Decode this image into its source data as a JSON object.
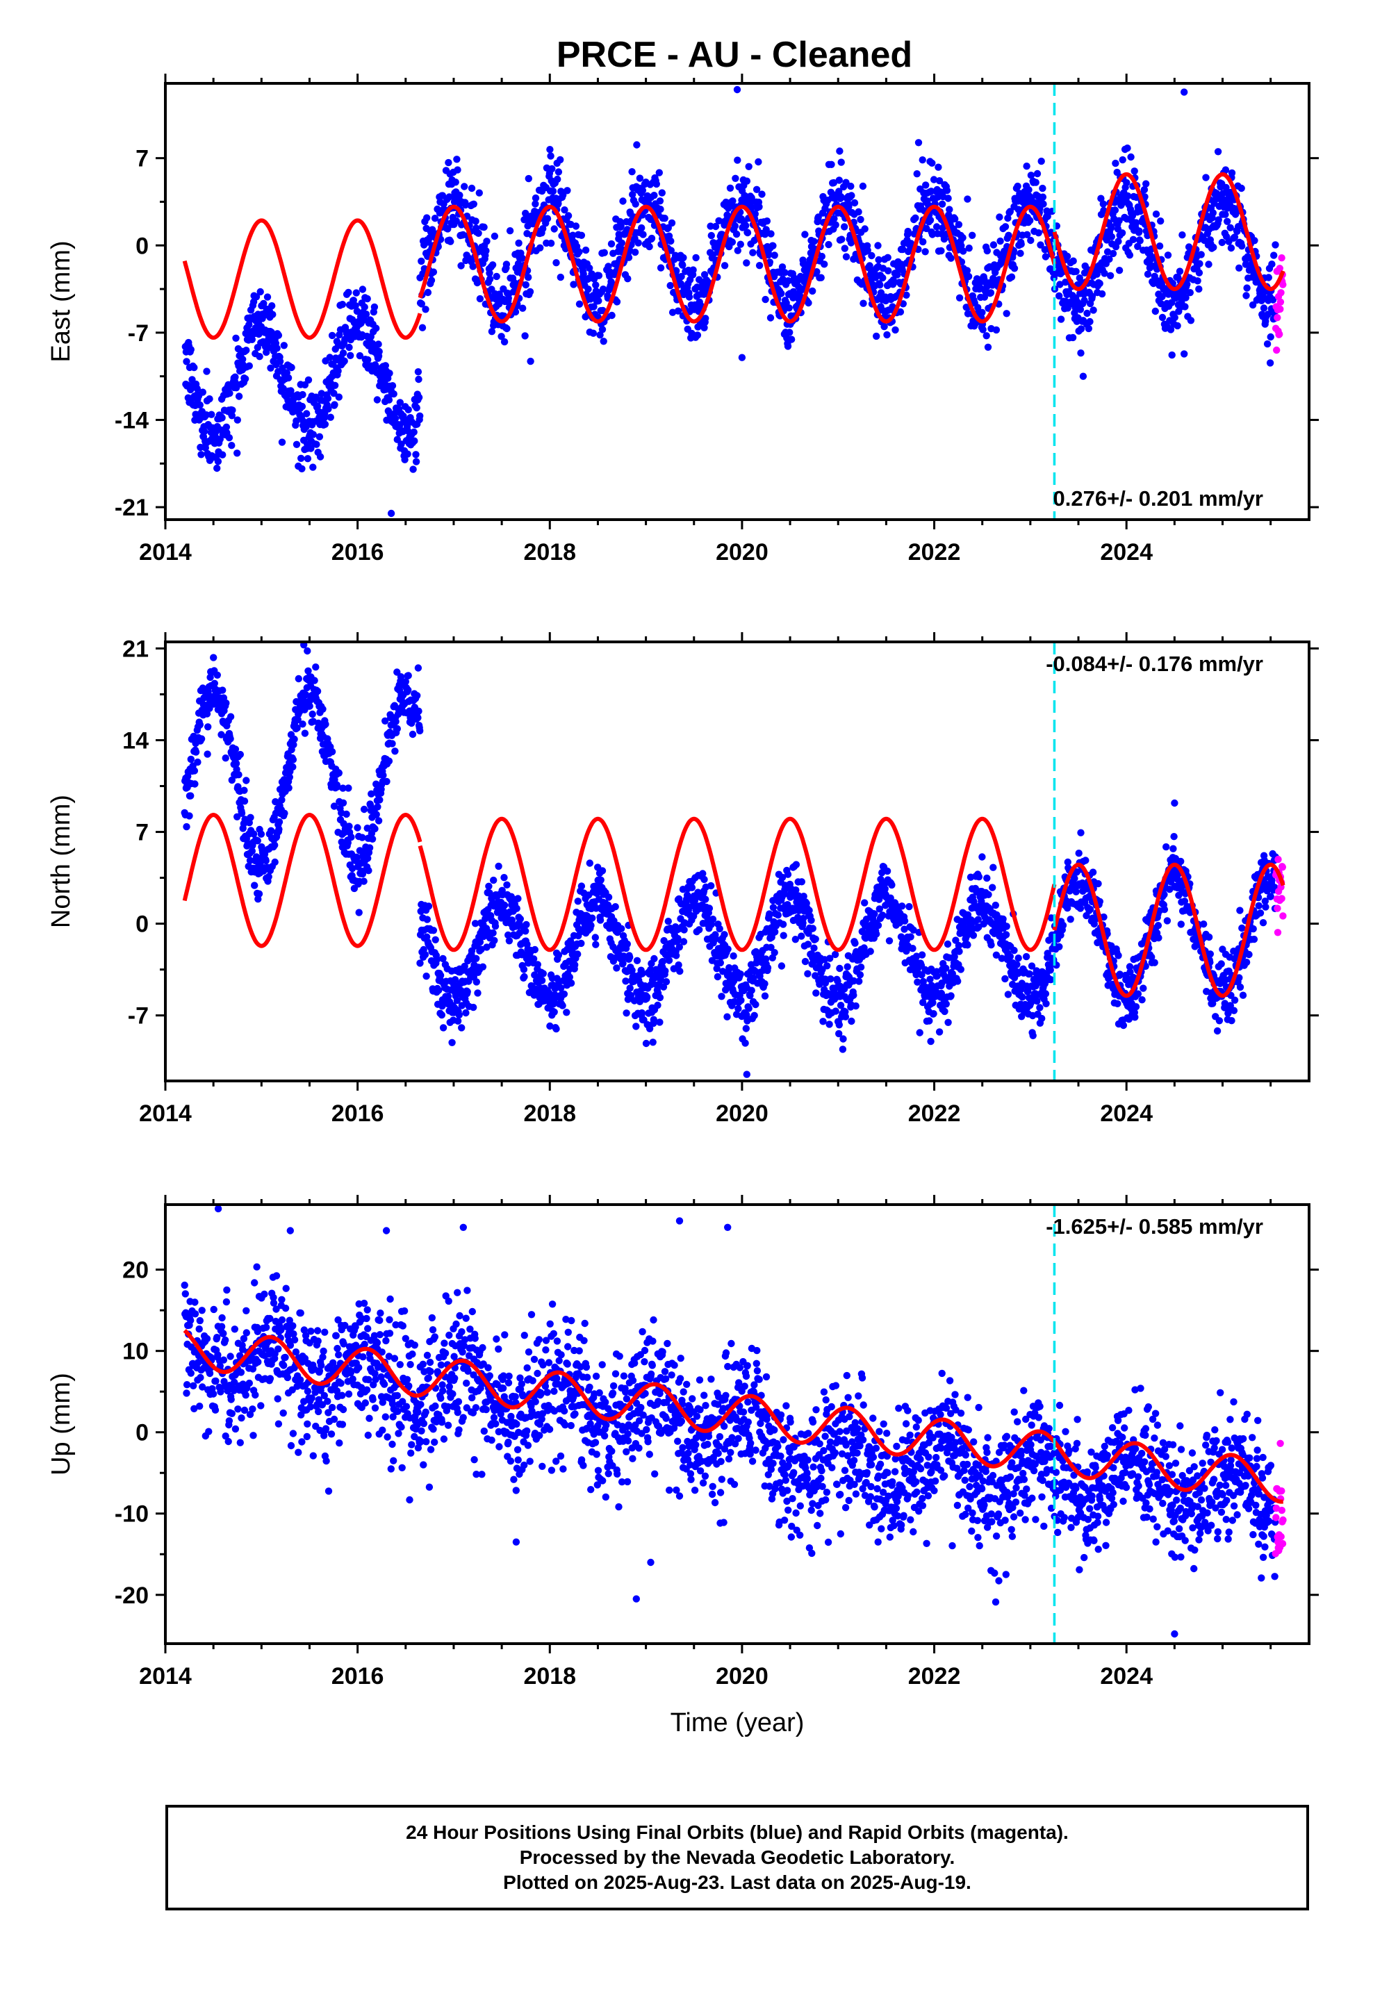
{
  "title": "PRCE  - AU - Cleaned",
  "colors": {
    "data": "#0000ff",
    "rapid": "#ff00ff",
    "model": "#ff0000",
    "event": "#00e5ee",
    "frame": "#000000"
  },
  "footer": {
    "line1": "24 Hour Positions Using Final Orbits (blue) and Rapid Orbits (magenta).",
    "line2": "Processed by the Nevada Geodetic Laboratory.",
    "line3": "Plotted on 2025-Aug-23. Last data on 2025-Aug-19."
  },
  "chart_data": [
    {
      "type": "scatter",
      "ylabel": "East (mm)",
      "xlabel": "",
      "xlim": [
        2014,
        2025.9
      ],
      "ylim": [
        -22,
        13
      ],
      "xticks": [
        2014,
        2016,
        2018,
        2020,
        2022,
        2024
      ],
      "yticks": [
        -21,
        -14,
        -7,
        0,
        7
      ],
      "rate_label": "0.276+/- 0.201 mm/yr",
      "rate_position": "bottom-right",
      "event_line_x": 2023.25,
      "data_start": 2014.2,
      "data_end": 2025.63,
      "rapid_start": 2025.55,
      "segments": [
        {
          "x0": 2014.2,
          "x1": 2016.65,
          "mean": -10.5,
          "amp": 4.5,
          "phase": 2015.0,
          "noise": 1.5
        },
        {
          "x0": 2016.65,
          "x1": 2025.63,
          "mean": -0.5,
          "amp": 4.0,
          "phase": 2018.0,
          "noise": 1.7
        }
      ],
      "model": [
        {
          "x0": 2014.2,
          "x1": 2016.65,
          "mean": -2.7,
          "amp": 4.7,
          "phase": 2015.0
        },
        {
          "x0": 2016.65,
          "x1": 2023.25,
          "mean": -1.5,
          "amp": 4.6,
          "phase": 2018.0
        },
        {
          "x0": 2023.25,
          "x1": 2025.63,
          "mean": 1.1,
          "amp": 4.6,
          "phase": 2024.0
        }
      ],
      "outliers": [
        [
          2016.35,
          -21.5
        ],
        [
          2019.95,
          12.5
        ],
        [
          2023.55,
          -10.5
        ],
        [
          2024.6,
          12.3
        ],
        [
          2017.8,
          -9.3
        ],
        [
          2020.0,
          -9.0
        ],
        [
          2024.6,
          -8.7
        ]
      ]
    },
    {
      "type": "scatter",
      "ylabel": "North (mm)",
      "xlabel": "",
      "xlim": [
        2014,
        2025.9
      ],
      "ylim": [
        -12,
        21.5
      ],
      "xticks": [
        2014,
        2016,
        2018,
        2020,
        2022,
        2024
      ],
      "yticks": [
        -7,
        0,
        7,
        14,
        21
      ],
      "rate_label": "-0.084+/- 0.176 mm/yr",
      "rate_position": "top-right",
      "event_line_x": 2023.25,
      "data_start": 2014.2,
      "data_end": 2025.63,
      "rapid_start": 2025.55,
      "segments": [
        {
          "x0": 2014.2,
          "x1": 2016.65,
          "mean": 11.0,
          "amp": 6.5,
          "phase": 2014.5,
          "noise": 1.3
        },
        {
          "x0": 2016.65,
          "x1": 2023.25,
          "mean": -2.0,
          "amp": 3.8,
          "phase": 2017.5,
          "noise": 1.3
        },
        {
          "x0": 2023.25,
          "x1": 2025.63,
          "mean": -1.0,
          "amp": 4.5,
          "phase": 2023.5,
          "noise": 1.2
        }
      ],
      "model": [
        {
          "x0": 2014.2,
          "x1": 2016.65,
          "mean": 3.3,
          "amp": 5.0,
          "phase": 2014.5
        },
        {
          "x0": 2016.65,
          "x1": 2023.25,
          "mean": 3.0,
          "amp": 5.0,
          "phase": 2017.5
        },
        {
          "x0": 2023.25,
          "x1": 2025.63,
          "mean": -0.5,
          "amp": 5.0,
          "phase": 2023.5
        }
      ],
      "outliers": [
        [
          2020.05,
          -11.5
        ],
        [
          2024.5,
          9.2
        ],
        [
          2014.5,
          20.3
        ]
      ]
    },
    {
      "type": "scatter",
      "ylabel": "Up (mm)",
      "xlabel": "Time (year)",
      "xlim": [
        2014,
        2025.9
      ],
      "ylim": [
        -26,
        28
      ],
      "xticks": [
        2014,
        2016,
        2018,
        2020,
        2022,
        2024
      ],
      "yticks": [
        -20,
        -10,
        0,
        10,
        20
      ],
      "rate_label": "-1.625+/- 0.585 mm/yr",
      "rate_position": "top-right",
      "event_line_x": 2023.25,
      "data_start": 2014.2,
      "data_end": 2025.63,
      "rapid_start": 2025.55,
      "segments": [
        {
          "x0": 2014.2,
          "x1": 2020.2,
          "mean": 10.0,
          "slope": -1.6,
          "amp": 3.0,
          "phase": 2015.1,
          "noise": 4.0
        },
        {
          "x0": 2020.2,
          "x1": 2025.63,
          "mean": -3.0,
          "slope": -0.8,
          "amp": 3.0,
          "phase": 2021.1,
          "noise": 3.8
        }
      ],
      "model": [
        {
          "x0": 2014.2,
          "x1": 2025.63,
          "mean": 10.5,
          "slope": -1.45,
          "amp": 2.5,
          "phase": 2015.1,
          "tstart": 2014.2
        }
      ],
      "outliers": [
        [
          2014.55,
          27.5
        ],
        [
          2015.3,
          24.8
        ],
        [
          2016.3,
          24.8
        ],
        [
          2017.1,
          25.2
        ],
        [
          2019.35,
          26.0
        ],
        [
          2019.85,
          25.2
        ],
        [
          2018.9,
          -20.5
        ],
        [
          2019.05,
          -16.0
        ],
        [
          2024.5,
          -24.8
        ],
        [
          2017.65,
          -13.5
        ]
      ]
    }
  ]
}
